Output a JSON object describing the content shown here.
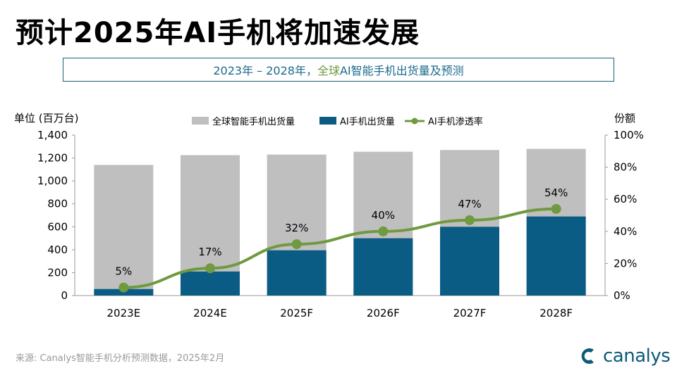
{
  "title": "预计2025年AI手机将加速发展",
  "subtitle": {
    "part1": "2023年 – 2028年，",
    "part2": "全球",
    "part3": "AI智能手机出货量及预测"
  },
  "left_axis_title": "单位 (百万台)",
  "right_axis_title": "份额",
  "source": "来源: Canalys智能手机分析预测数据，2025年2月",
  "logo_text": "canalys",
  "colors": {
    "total": "#bfbfbf",
    "ai": "#0b5c85",
    "line": "#6f9a3f",
    "teal": "#1a6a8c"
  },
  "chart_data": {
    "type": "bar+line",
    "categories": [
      "2023E",
      "2024E",
      "2025F",
      "2026F",
      "2027F",
      "2028F"
    ],
    "series": [
      {
        "name": "全球智能手机出货量",
        "type": "bar",
        "axis": "left",
        "values": [
          1140,
          1225,
          1230,
          1255,
          1270,
          1280
        ]
      },
      {
        "name": "AI手机出货量",
        "type": "bar",
        "axis": "left",
        "values": [
          57,
          210,
          395,
          500,
          600,
          690
        ]
      },
      {
        "name": "AI手机渗透率",
        "type": "line",
        "axis": "right",
        "values": [
          5,
          17,
          32,
          40,
          47,
          54
        ],
        "labels": [
          "5%",
          "17%",
          "32%",
          "40%",
          "47%",
          "54%"
        ]
      }
    ],
    "left_axis": {
      "min": 0,
      "max": 1400,
      "ticks": [
        0,
        200,
        400,
        600,
        800,
        1000,
        1200,
        1400
      ],
      "tick_labels": [
        "0",
        "200",
        "400",
        "600",
        "800",
        "1,000",
        "1,200",
        "1,400"
      ]
    },
    "right_axis": {
      "min": 0,
      "max": 100,
      "ticks": [
        0,
        20,
        40,
        60,
        80,
        100
      ],
      "tick_labels": [
        "0%",
        "20%",
        "40%",
        "60%",
        "80%",
        "100%"
      ]
    },
    "legend": [
      "全球智能手机出货量",
      "AI手机出货量",
      "AI手机渗透率"
    ],
    "legend_position": "top"
  }
}
